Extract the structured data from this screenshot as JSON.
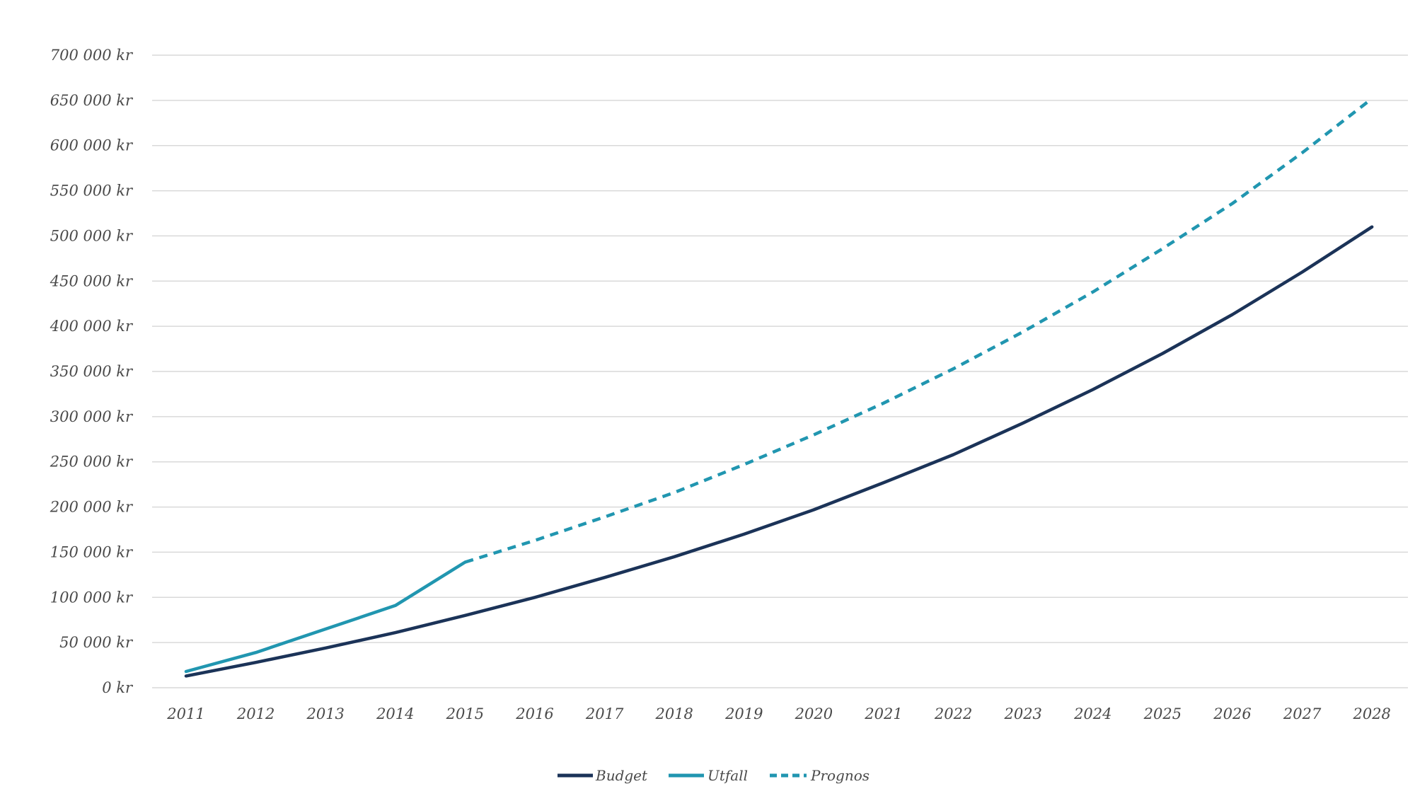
{
  "chart_data": {
    "type": "line",
    "title": "",
    "xlabel": "",
    "ylabel": "",
    "categories": [
      "2011",
      "2012",
      "2013",
      "2014",
      "2015",
      "2016",
      "2017",
      "2018",
      "2019",
      "2020",
      "2021",
      "2022",
      "2023",
      "2024",
      "2025",
      "2026",
      "2027",
      "2028"
    ],
    "y_ticks": [
      "0 kr",
      "50 000 kr",
      "100 000 kr",
      "150 000 kr",
      "200 000 kr",
      "250 000 kr",
      "300 000 kr",
      "350 000 kr",
      "400 000 kr",
      "450 000 kr",
      "500 000 kr",
      "550 000 kr",
      "600 000 kr",
      "650 000 kr",
      "700 000 kr"
    ],
    "ylim": [
      0,
      700000
    ],
    "grid": true,
    "legend_position": "bottom",
    "series": [
      {
        "name": "Budget",
        "color": "#1b3358",
        "style": "solid",
        "values": [
          13000,
          28000,
          44000,
          61000,
          80000,
          100000,
          122000,
          145000,
          170000,
          197000,
          227000,
          258000,
          293000,
          330000,
          370000,
          413000,
          460000,
          510000
        ]
      },
      {
        "name": "Utfall",
        "color": "#2196b0",
        "style": "solid",
        "values": [
          18000,
          39000,
          65000,
          91000,
          139000,
          null,
          null,
          null,
          null,
          null,
          null,
          null,
          null,
          null,
          null,
          null,
          null,
          null
        ]
      },
      {
        "name": "Prognos",
        "color": "#2196b0",
        "style": "dashed",
        "values": [
          null,
          null,
          null,
          null,
          139000,
          163000,
          189000,
          216000,
          247000,
          280000,
          315000,
          353000,
          394000,
          438000,
          486000,
          536000,
          592000,
          652000
        ]
      }
    ]
  }
}
